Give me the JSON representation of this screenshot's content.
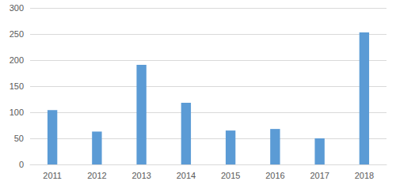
{
  "chart_data": {
    "type": "bar",
    "categories": [
      "2011",
      "2012",
      "2013",
      "2014",
      "2015",
      "2016",
      "2017",
      "2018"
    ],
    "values": [
      104,
      63,
      191,
      118,
      65,
      68,
      50,
      253
    ],
    "color": "#5b9bd5",
    "ylim": [
      0,
      300
    ],
    "yticks": [
      0,
      50,
      100,
      150,
      200,
      250,
      300
    ],
    "grid": true
  }
}
